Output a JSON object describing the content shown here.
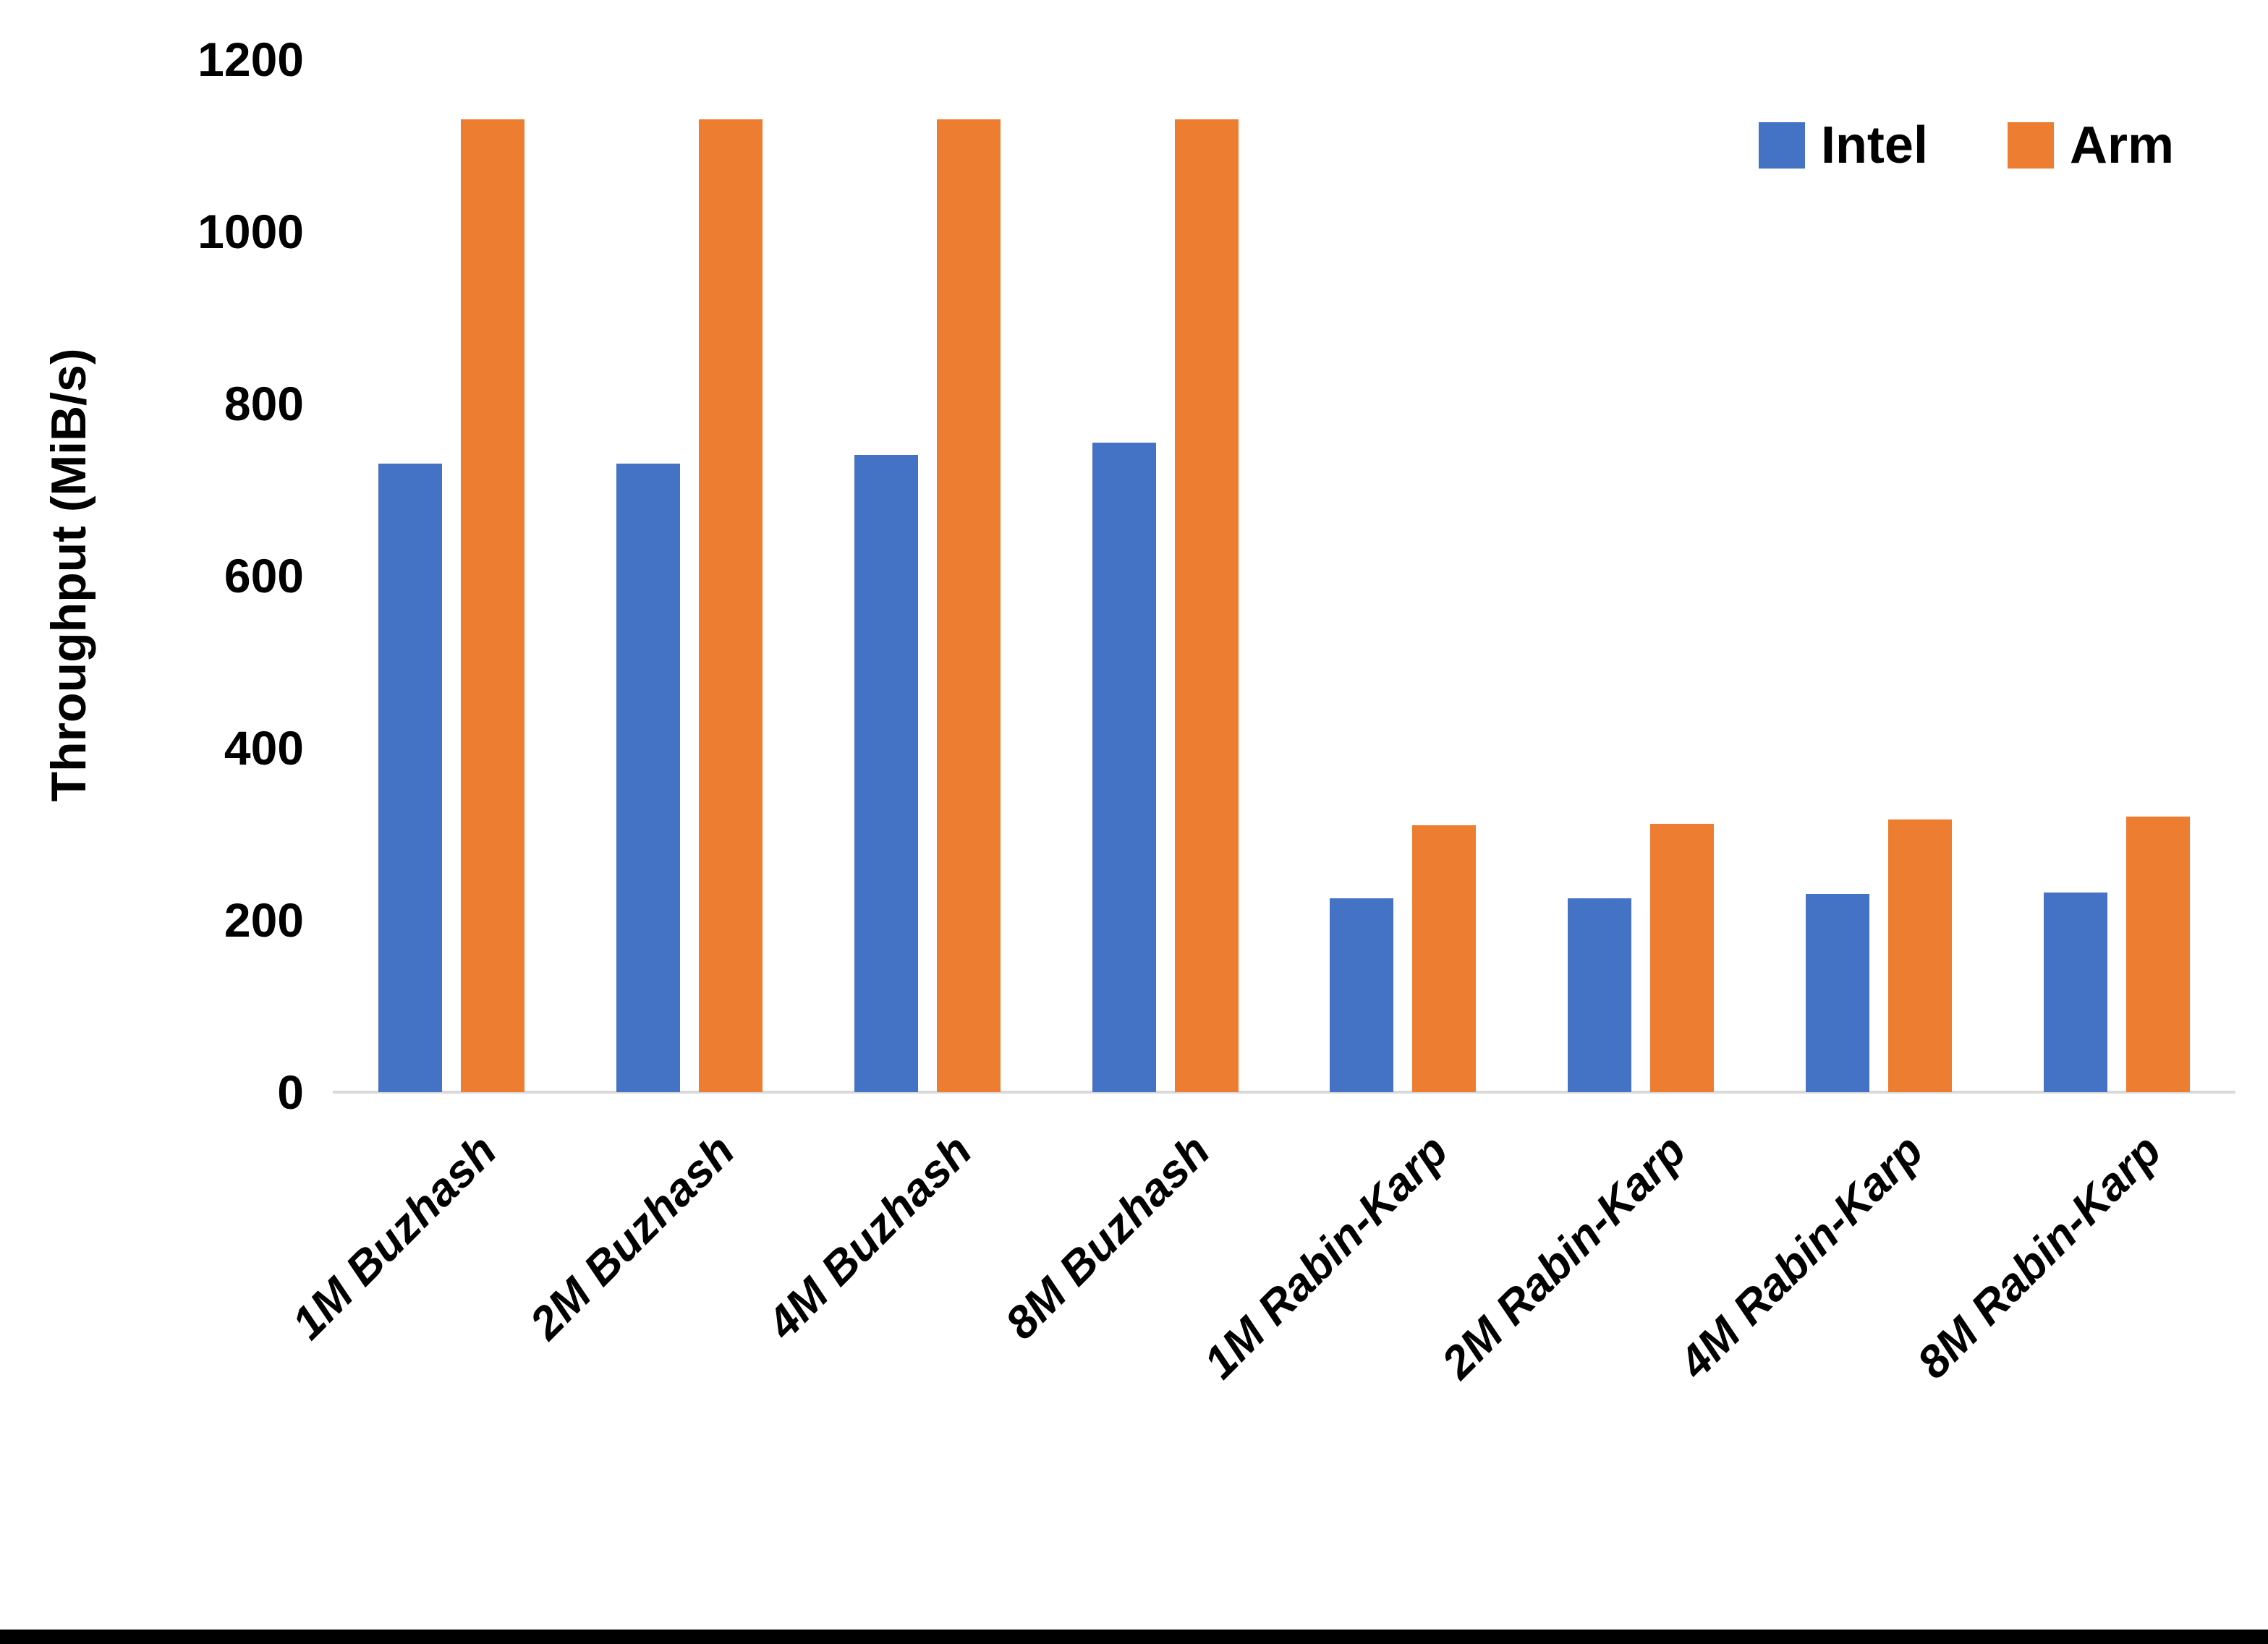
{
  "chart_data": {
    "type": "bar",
    "title": "",
    "xlabel": "",
    "ylabel": "Throughput (MiB/s)",
    "ylim": [
      0,
      1200
    ],
    "yticks": [
      0,
      200,
      400,
      600,
      800,
      1000,
      1200
    ],
    "grid": false,
    "legend_position": "top-right",
    "axis_line_color": "#d9d9d9",
    "text_color": "#000000",
    "categories": [
      "1M Buzhash",
      "2M Buzhash",
      "4M Buzhash",
      "8M Buzhash",
      "1M Rabin-Karp",
      "2M Rabin-Karp",
      "4M Rabin-Karp",
      "8M Rabin-Karp"
    ],
    "series": [
      {
        "name": "Intel",
        "color": "#4472C4",
        "values": [
          730,
          730,
          740,
          755,
          225,
          225,
          230,
          232
        ]
      },
      {
        "name": "Arm",
        "color": "#ED7D31",
        "values": [
          1130,
          1130,
          1130,
          1130,
          310,
          312,
          317,
          320
        ]
      }
    ]
  },
  "page": {
    "background": "#ffffff",
    "bottom_bar_color": "#000000"
  }
}
